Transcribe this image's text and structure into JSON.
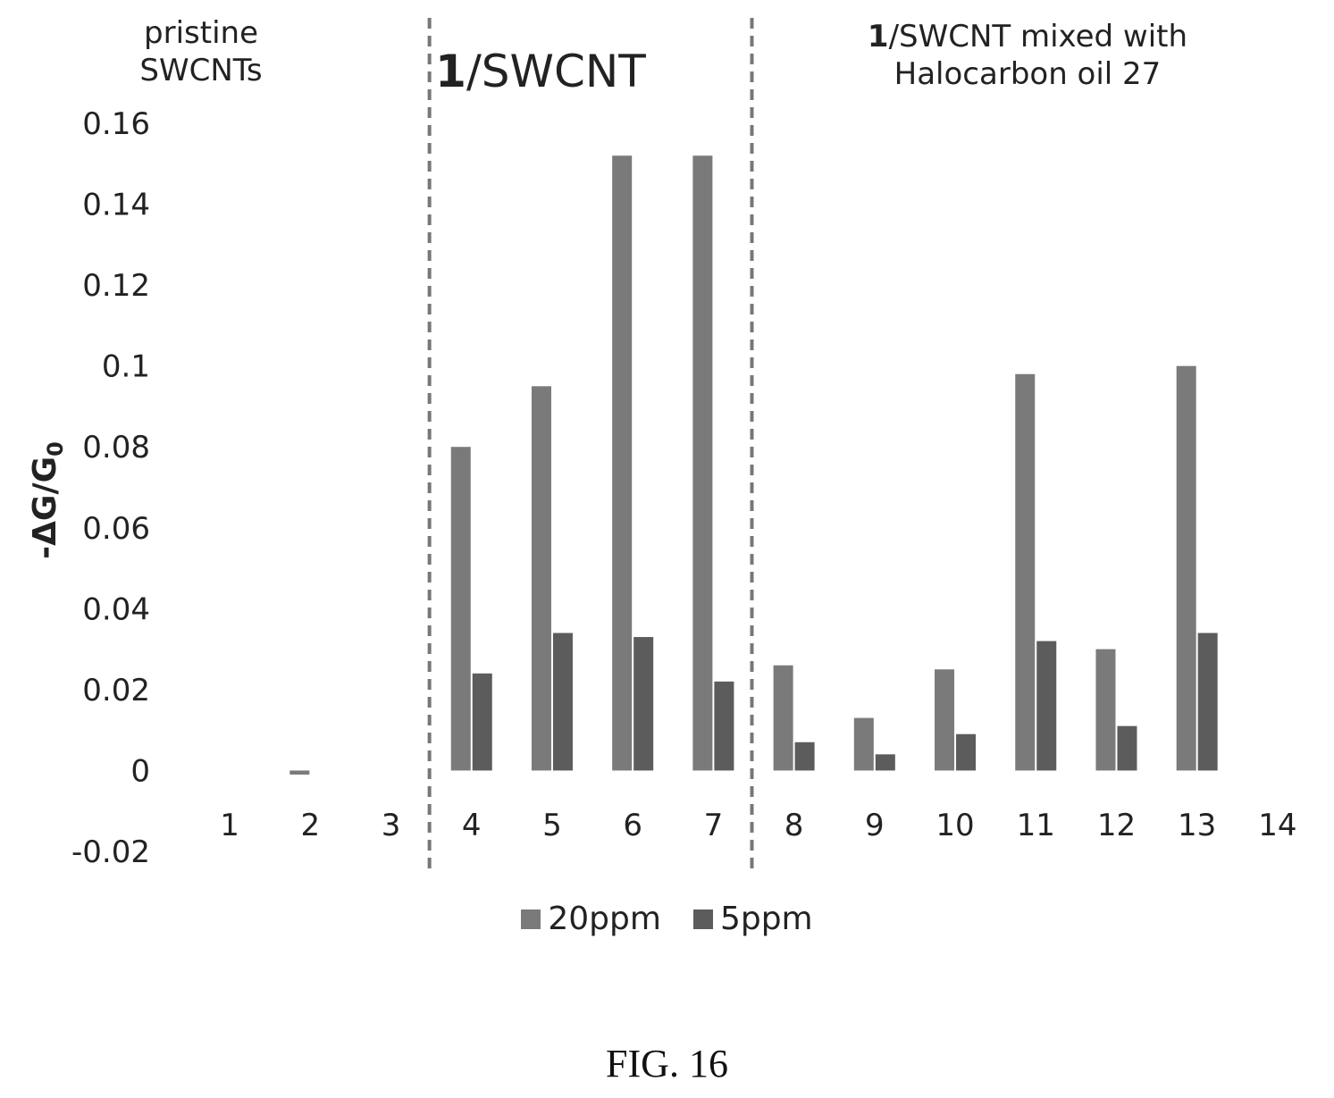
{
  "chart_data": {
    "type": "bar",
    "categories": [
      "1",
      "2",
      "3",
      "4",
      "5",
      "6",
      "7",
      "8",
      "9",
      "10",
      "11",
      "12",
      "13",
      "14"
    ],
    "series": [
      {
        "name": "20ppm",
        "values": [
          0,
          -0.001,
          0,
          0.08,
          0.095,
          0.152,
          0.152,
          0.026,
          0.013,
          0.025,
          0.098,
          0.03,
          0.1,
          0
        ],
        "color": "#7a7a7a"
      },
      {
        "name": "5ppm",
        "values": [
          0,
          0,
          0,
          0.024,
          0.034,
          0.033,
          0.022,
          0.007,
          0.004,
          0.009,
          0.032,
          0.011,
          0.034,
          0
        ],
        "color": "#5c5c5c"
      }
    ],
    "ylabel": "-ΔG/G",
    "ylabel_sub": "0",
    "ylim": [
      -0.02,
      0.16
    ],
    "yticks": [
      "0.16",
      "0.14",
      "0.12",
      "0.1",
      "0.08",
      "0.06",
      "0.04",
      "0.02",
      "0",
      "-0.02"
    ],
    "section_labels": {
      "pristine_line1": "pristine",
      "pristine_line2": "SWCNTs",
      "swcnt_num": "1",
      "swcnt_rest": "/SWCNT",
      "mixed_num": "1",
      "mixed_rest": "/SWCNT mixed with",
      "mixed_line2": "Halocarbon oil 27"
    },
    "dividers_after_category": [
      "3",
      "7"
    ],
    "grid": false,
    "legend_position": "bottom"
  },
  "caption": "FIG. 16"
}
